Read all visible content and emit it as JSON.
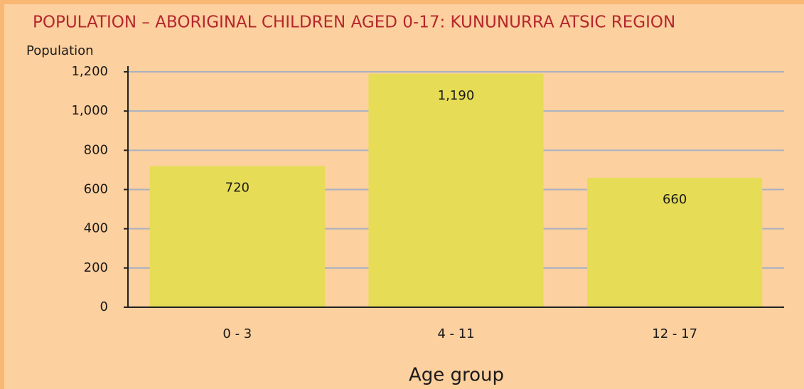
{
  "chart_data": {
    "type": "bar",
    "title": "POPULATION – ABORIGINAL CHILDREN AGED 0-17: KUNUNURRA ATSIC REGION",
    "y_label": "Population",
    "x_label": "Age group",
    "categories": [
      "0 - 3",
      "4 - 11",
      "12 - 17"
    ],
    "values": [
      720,
      1190,
      660
    ],
    "value_labels": [
      "720",
      "1,190",
      "660"
    ],
    "color": "#e6dc55",
    "ylim": [
      0,
      1200
    ],
    "yticks": [
      0,
      200,
      400,
      600,
      800,
      {
        "value": 1000,
        "label": "1,000"
      },
      {
        "value": 1200,
        "label": "1,200"
      }
    ],
    "grid": true
  }
}
